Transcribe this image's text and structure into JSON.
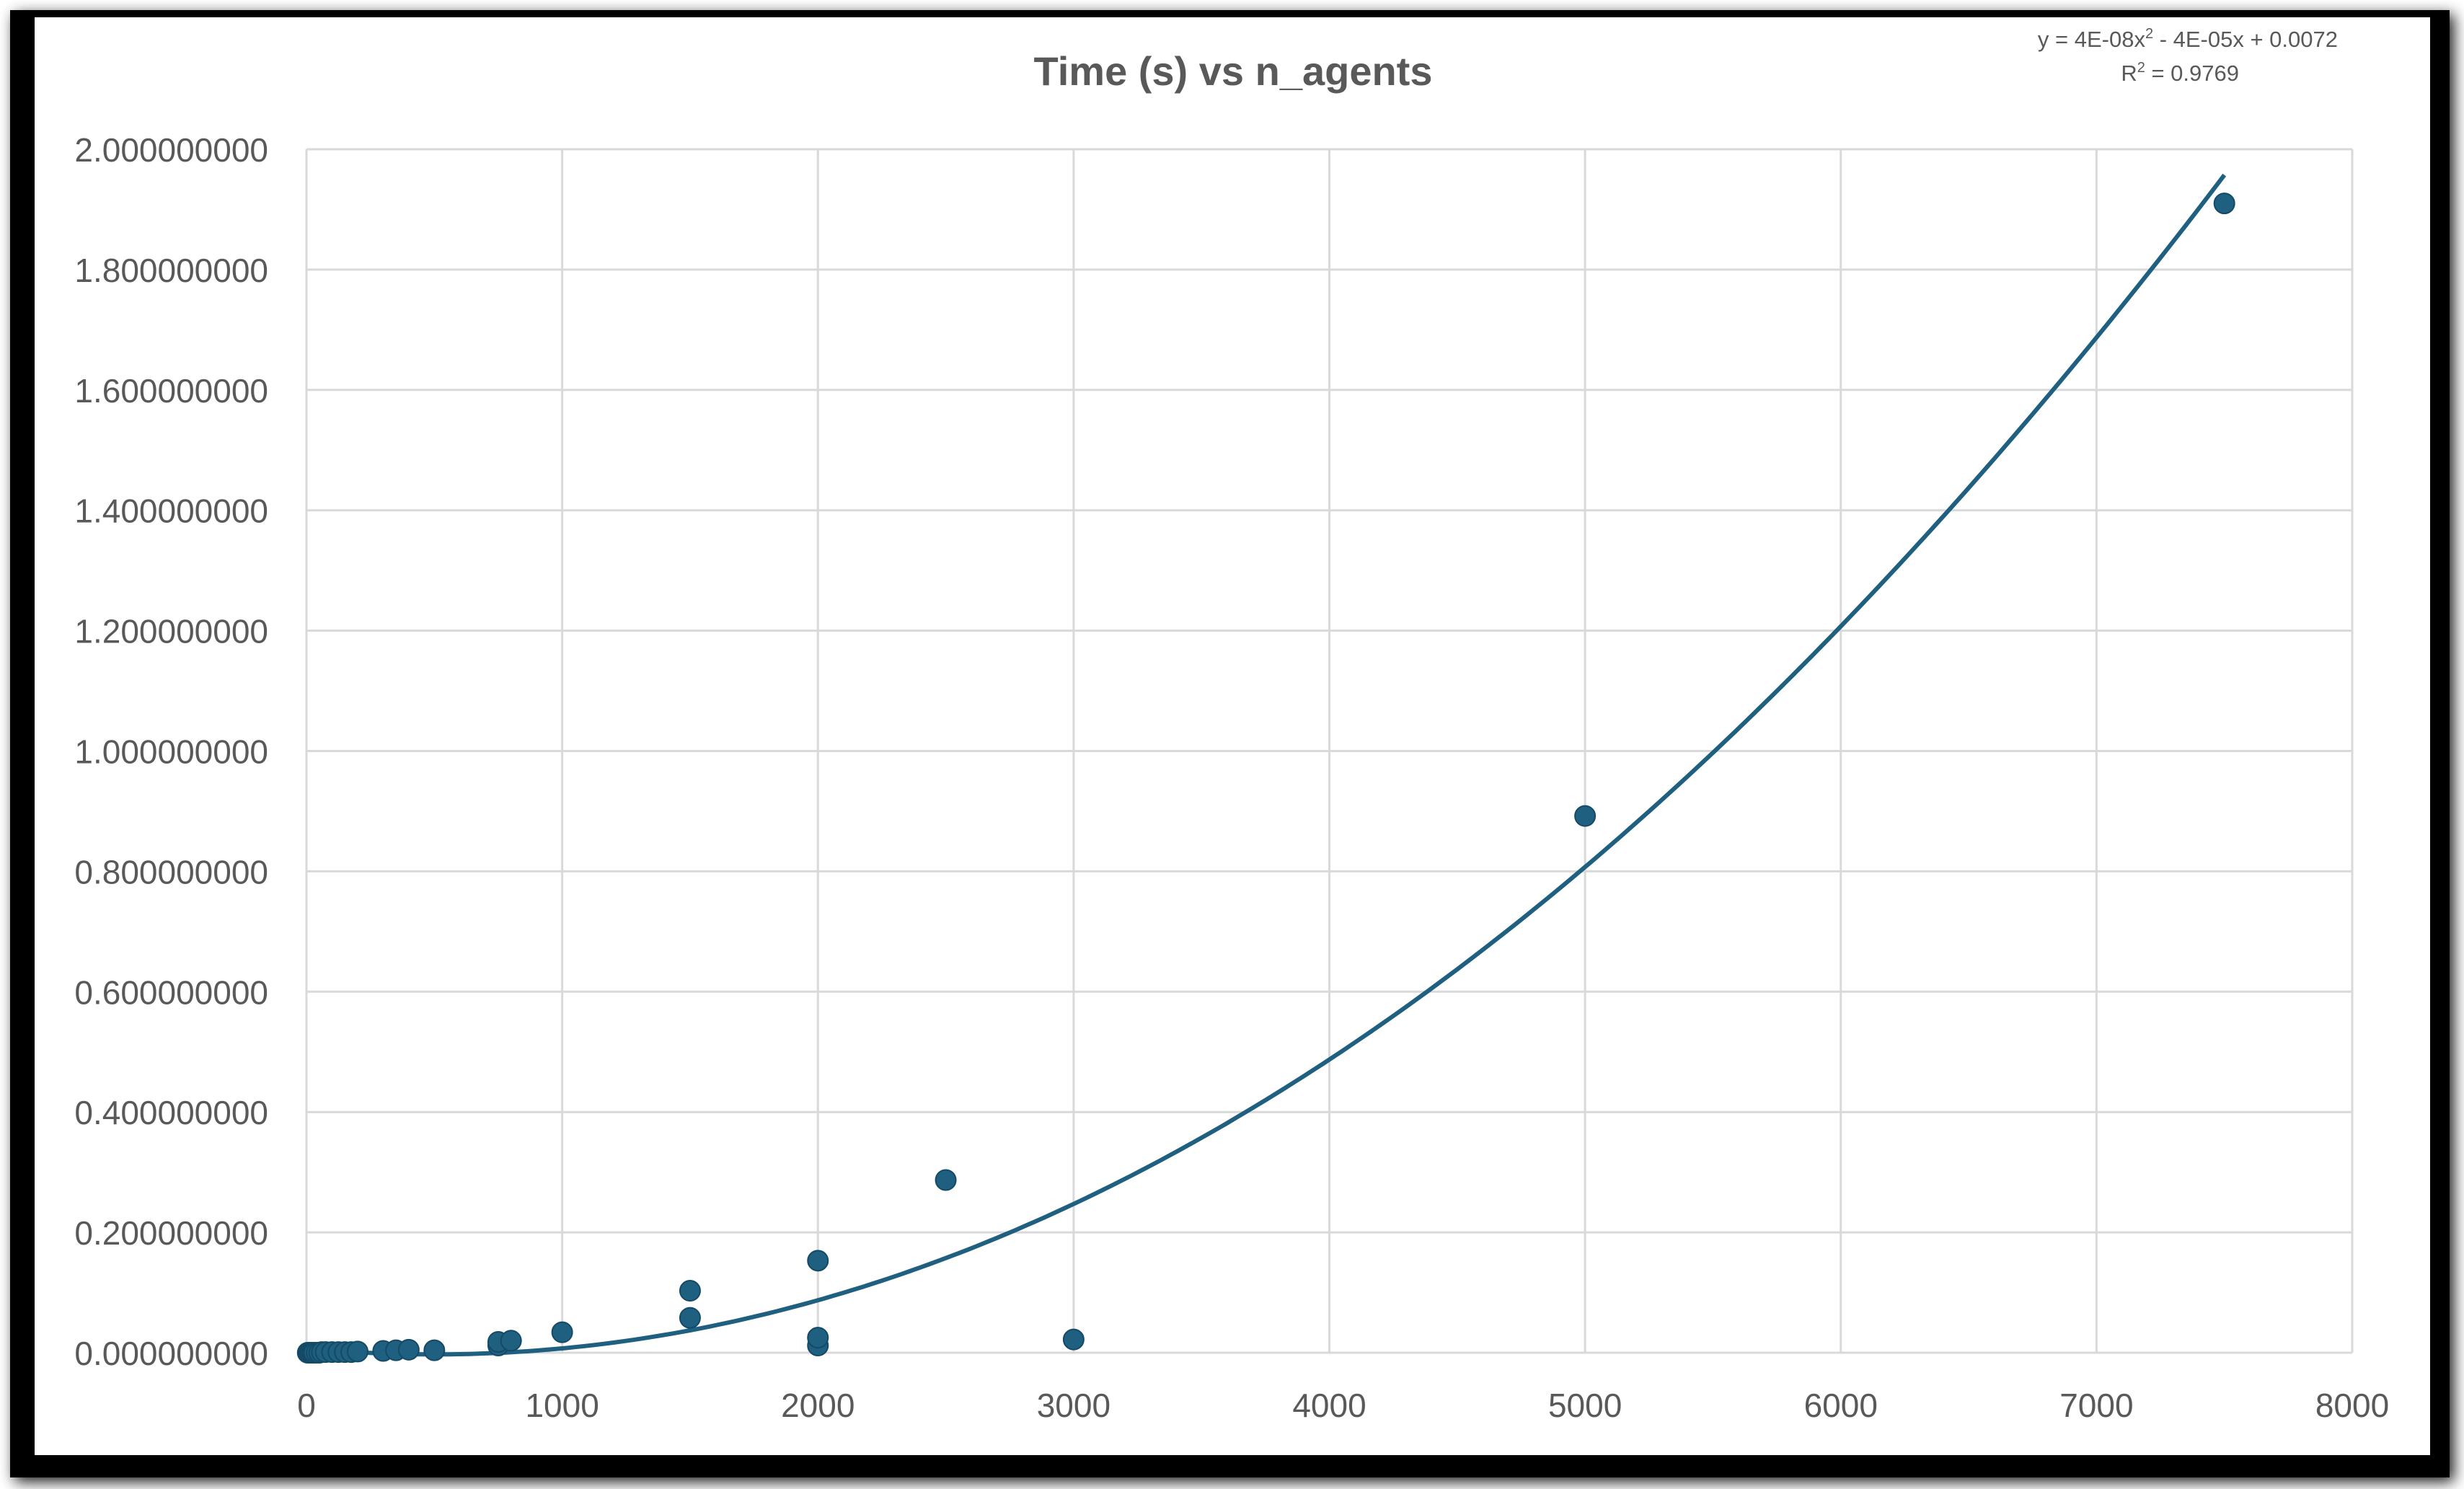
{
  "chart_data": {
    "type": "scatter",
    "title": "Time (s) vs n_agents",
    "xlabel": "",
    "ylabel": "",
    "xlim": [
      0,
      8000
    ],
    "ylim": [
      0,
      2.0
    ],
    "x_ticks": [
      0,
      1000,
      2000,
      3000,
      4000,
      5000,
      6000,
      7000,
      8000
    ],
    "x_tick_labels": [
      "0",
      "1000",
      "2000",
      "3000",
      "4000",
      "5000",
      "6000",
      "7000",
      "8000"
    ],
    "y_ticks": [
      0,
      0.2,
      0.4,
      0.6,
      0.8,
      1.0,
      1.2,
      1.4,
      1.6,
      1.8,
      2.0
    ],
    "y_tick_labels": [
      "0.000000000",
      "0.200000000",
      "0.400000000",
      "0.600000000",
      "0.800000000",
      "1.000000000",
      "1.200000000",
      "1.400000000",
      "1.600000000",
      "1.800000000",
      "2.000000000"
    ],
    "grid": true,
    "series": [
      {
        "name": "Time (s)",
        "color": "#1f5f80",
        "points": [
          [
            5,
            0.0
          ],
          [
            10,
            0.0
          ],
          [
            15,
            0.0
          ],
          [
            20,
            0.0
          ],
          [
            25,
            0.0
          ],
          [
            30,
            0.0
          ],
          [
            40,
            0.0
          ],
          [
            50,
            0.0
          ],
          [
            60,
            0.001
          ],
          [
            75,
            0.001
          ],
          [
            100,
            0.001
          ],
          [
            125,
            0.001
          ],
          [
            150,
            0.001
          ],
          [
            175,
            0.001
          ],
          [
            200,
            0.002
          ],
          [
            300,
            0.003
          ],
          [
            350,
            0.004
          ],
          [
            400,
            0.005
          ],
          [
            500,
            0.004
          ],
          [
            750,
            0.012
          ],
          [
            750,
            0.018
          ],
          [
            800,
            0.02
          ],
          [
            1000,
            0.034
          ],
          [
            1500,
            0.058
          ],
          [
            1500,
            0.103
          ],
          [
            2000,
            0.012
          ],
          [
            2000,
            0.025
          ],
          [
            2000,
            0.153
          ],
          [
            2500,
            0.287
          ],
          [
            3000,
            0.022
          ],
          [
            5000,
            0.892
          ],
          [
            7500,
            1.91
          ]
        ]
      }
    ],
    "trendline": {
      "type": "polynomial",
      "coefficients": [
        4e-08,
        -4e-05,
        0.0072
      ],
      "x_range": [
        0,
        7500
      ],
      "color": "#1f5f80",
      "equation_label": "y = 4E-08x",
      "equation_exp": "2",
      "equation_rest": " - 4E-05x + 0.0072",
      "r2_label": "R",
      "r2_exp": "2",
      "r2_rest": " = 0.9769"
    },
    "colors": {
      "grid": "#d9d9d9",
      "axis_text": "#595959",
      "title": "#595959"
    }
  }
}
